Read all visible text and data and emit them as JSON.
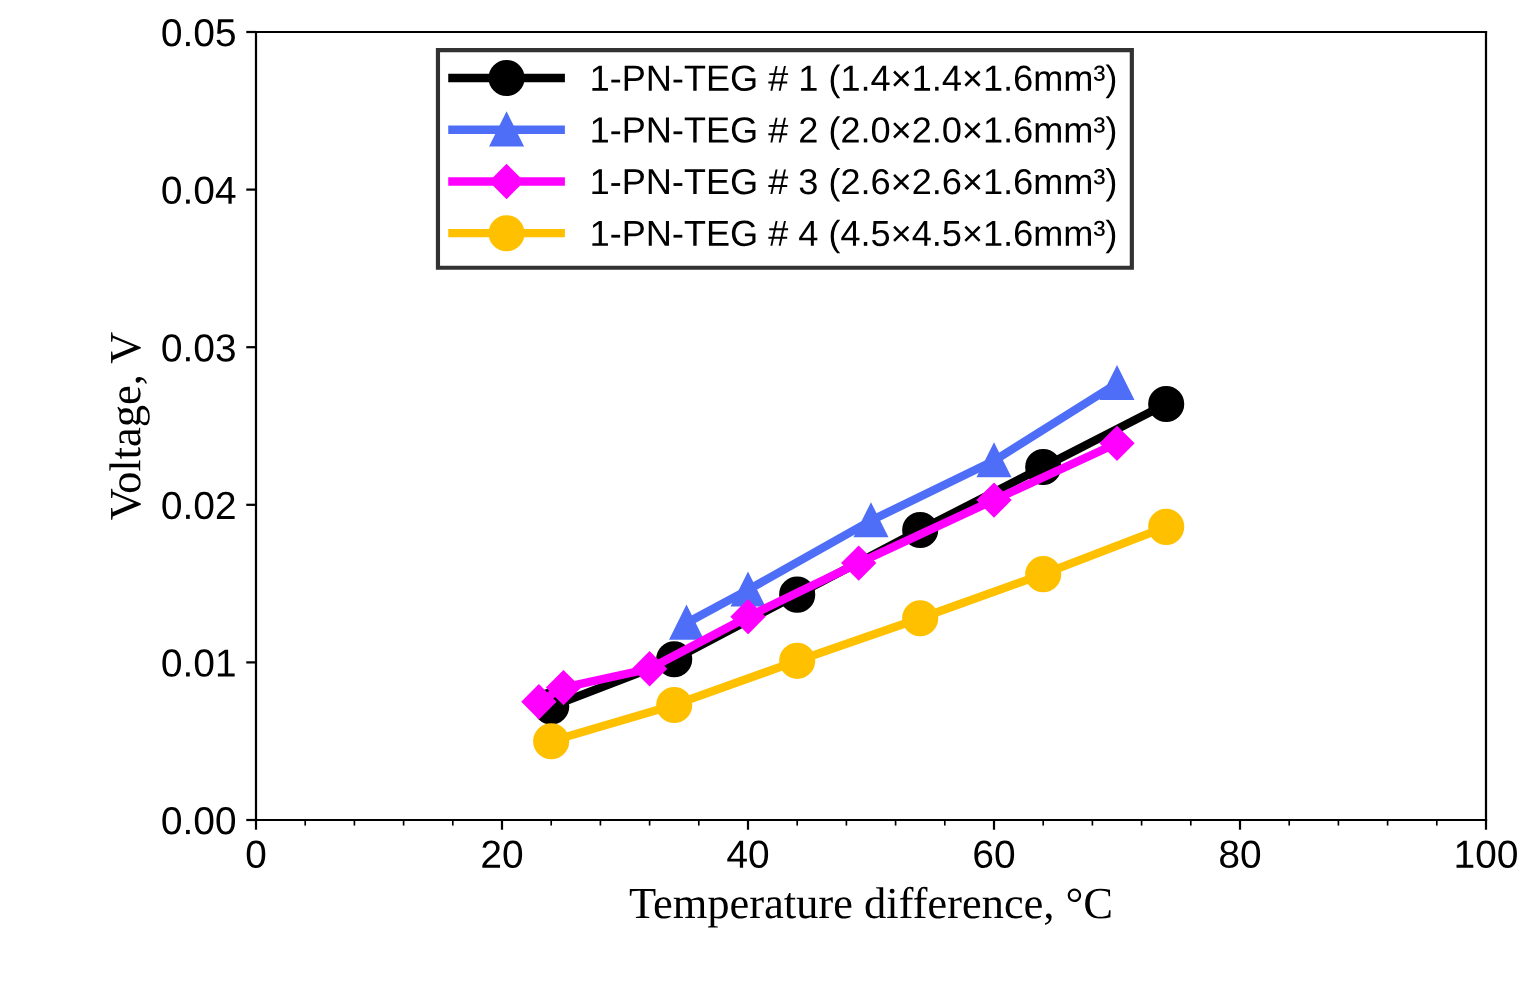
{
  "chart_data": {
    "type": "line",
    "xlabel": "Temperature difference, °C",
    "ylabel": "Voltage, V",
    "xlim": [
      0,
      100
    ],
    "xticks": [
      0,
      20,
      40,
      60,
      80,
      100
    ],
    "ylim": [
      0,
      0.05
    ],
    "yticks": [
      {
        "value": 0,
        "label": "0.00"
      },
      {
        "value": 0.01,
        "label": "0.01"
      },
      {
        "value": 0.02,
        "label": "0.02"
      },
      {
        "value": 0.03,
        "label": "0.03"
      },
      {
        "value": 0.04,
        "label": "0.04"
      },
      {
        "value": 0.05,
        "label": "0.05"
      }
    ],
    "grid": false,
    "legend": "top",
    "line_style": "solid",
    "series": [
      {
        "name": "1-PN-TEG # 1 (1.4×1.4×1.6mm³)",
        "color": "#000000",
        "marker": "circle",
        "x": [
          24,
          34,
          44,
          54,
          64,
          74
        ],
        "values": [
          0.0072,
          0.0102,
          0.0143,
          0.0184,
          0.0224,
          0.0264
        ]
      },
      {
        "name": "1-PN-TEG # 2 (2.0×2.0×1.6mm³)",
        "color": "#4f6ef7",
        "marker": "triangle",
        "x": [
          35,
          40,
          50,
          60,
          70
        ],
        "values": [
          0.0125,
          0.0146,
          0.019,
          0.0228,
          0.0277
        ]
      },
      {
        "name": "1-PN-TEG # 3 (2.6×2.6×1.6mm³)",
        "color": "#ff00ff",
        "marker": "diamond",
        "x": [
          23,
          25,
          32,
          40,
          49,
          60,
          70
        ],
        "values": [
          0.0075,
          0.0084,
          0.0096,
          0.0129,
          0.0163,
          0.0203,
          0.0239
        ]
      },
      {
        "name": "1-PN-TEG # 4 (4.5×4.5×1.6mm³)",
        "color": "#ffc000",
        "marker": "circle",
        "x": [
          24,
          34,
          44,
          54,
          64,
          74
        ],
        "values": [
          0.005,
          0.0073,
          0.0101,
          0.0128,
          0.0156,
          0.0186
        ]
      }
    ]
  }
}
